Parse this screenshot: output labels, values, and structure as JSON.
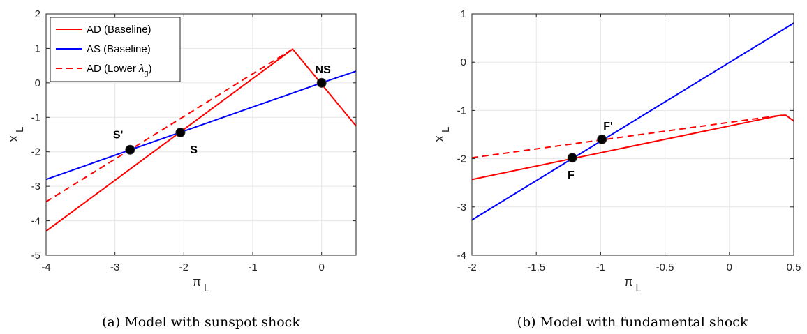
{
  "colors": {
    "ad": "#ff0000",
    "as": "#0000ff",
    "grid": "#e6e6e6",
    "axis": "#262626",
    "point": "#000000"
  },
  "chart_data": [
    {
      "type": "line",
      "caption": "(a) Model with sunspot shock",
      "xlabel_main": "π",
      "xlabel_sub": "L",
      "ylabel_main": "x",
      "ylabel_sub": "L",
      "xlim": [
        -4,
        0.5
      ],
      "ylim": [
        -5,
        2
      ],
      "xticks": [
        -4,
        -3,
        -2,
        -1,
        0
      ],
      "xtick_labels": [
        "-4",
        "-3",
        "-2",
        "-1",
        "0"
      ],
      "yticks": [
        -5,
        -4,
        -3,
        -2,
        -1,
        0,
        1,
        2
      ],
      "ytick_labels": [
        "-5",
        "-4",
        "-3",
        "-2",
        "-1",
        "0",
        "1",
        "2"
      ],
      "grid": true,
      "legend": {
        "placement": "top-left",
        "entries": [
          {
            "label": "AD (Baseline)",
            "color": "#ff0000",
            "dash": false
          },
          {
            "label": "AS (Baseline)",
            "color": "#0000ff",
            "dash": false
          },
          {
            "label_prefix": "AD (Lower ",
            "label_symbol": "λ",
            "label_sub": "g",
            "label_suffix": ")",
            "color": "#ff0000",
            "dash": true
          }
        ]
      },
      "series": [
        {
          "name": "AD (Baseline)",
          "color": "#ff0000",
          "dash": false,
          "points": [
            [
              -4,
              -4.3
            ],
            [
              -0.42,
              0.98
            ],
            [
              0.5,
              -1.25
            ]
          ]
        },
        {
          "name": "AS (Baseline)",
          "color": "#0000ff",
          "dash": false,
          "points": [
            [
              -4,
              -2.8
            ],
            [
              0,
              0
            ],
            [
              0.5,
              0.34
            ]
          ]
        },
        {
          "name": "AD (Lower λg)",
          "color": "#ff0000",
          "dash": true,
          "points": [
            [
              -4,
              -3.45
            ],
            [
              -0.42,
              0.98
            ]
          ]
        }
      ],
      "markers": [
        {
          "label": "NS",
          "x": 0,
          "y": 0,
          "label_pos": "above"
        },
        {
          "label": "S",
          "x": -2.05,
          "y": -1.44,
          "label_pos": "below-right"
        },
        {
          "label": "S'",
          "x": -2.78,
          "y": -1.94,
          "label_pos": "above-left"
        }
      ]
    },
    {
      "type": "line",
      "caption": "(b) Model with fundamental shock",
      "xlabel_main": "π",
      "xlabel_sub": "L",
      "ylabel_main": "x",
      "ylabel_sub": "L",
      "xlim": [
        -2,
        0.5
      ],
      "ylim": [
        -4,
        1
      ],
      "xticks": [
        -2,
        -1.5,
        -1,
        -0.5,
        0,
        0.5
      ],
      "xtick_labels": [
        "-2",
        "-1.5",
        "-1",
        "-0.5",
        "0",
        "0.5"
      ],
      "yticks": [
        -4,
        -3,
        -2,
        -1,
        0,
        1
      ],
      "ytick_labels": [
        "-4",
        "-3",
        "-2",
        "-1",
        "0",
        "1"
      ],
      "grid": true,
      "series": [
        {
          "name": "AD (Baseline)",
          "color": "#ff0000",
          "dash": false,
          "points": [
            [
              -2,
              -2.43
            ],
            [
              0.4,
              -1.1
            ],
            [
              0.44,
              -1.1
            ],
            [
              0.5,
              -1.22
            ]
          ]
        },
        {
          "name": "AS (Baseline)",
          "color": "#0000ff",
          "dash": false,
          "points": [
            [
              -2,
              -3.27
            ],
            [
              0.5,
              0.81
            ]
          ]
        },
        {
          "name": "AD (Lower λg)",
          "color": "#ff0000",
          "dash": true,
          "points": [
            [
              -2,
              -1.98
            ],
            [
              0.4,
              -1.1
            ],
            [
              0.44,
              -1.1
            ],
            [
              0.5,
              -1.22
            ]
          ]
        }
      ],
      "markers": [
        {
          "label": "F",
          "x": -1.22,
          "y": -1.98,
          "label_pos": "below"
        },
        {
          "label": "F'",
          "x": -0.99,
          "y": -1.6,
          "label_pos": "above-right"
        }
      ]
    }
  ]
}
